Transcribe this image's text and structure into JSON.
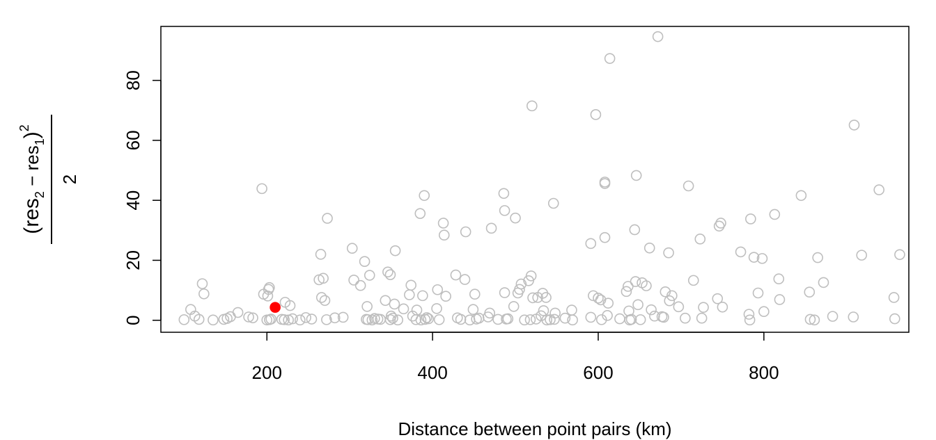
{
  "chart_data": {
    "type": "scatter",
    "xlabel": "Distance between point pairs (km)",
    "ylabel_expr": {
      "numerator_parts": [
        "(res",
        "2",
        " − res",
        "1",
        ")",
        "2"
      ],
      "denominator": "2"
    },
    "xlim": [
      72,
      975
    ],
    "ylim": [
      -4,
      98
    ],
    "x_ticks": [
      200,
      400,
      600,
      800
    ],
    "y_ticks": [
      0,
      20,
      40,
      60,
      80
    ],
    "grid": false,
    "colors": {
      "points": "#bebebe",
      "highlight": "#ff0000"
    },
    "series": [
      {
        "points": [
          [
            100,
            0.2
          ],
          [
            108,
            3.6
          ],
          [
            113,
            1.4
          ],
          [
            118,
            0.3
          ],
          [
            122,
            12.2
          ],
          [
            124,
            8.8
          ],
          [
            135,
            0.1
          ],
          [
            148,
            0.3
          ],
          [
            152,
            0.6
          ],
          [
            156,
            1.2
          ],
          [
            165,
            2.6
          ],
          [
            178,
            1.1
          ],
          [
            183,
            0.8
          ],
          [
            194,
            43.9
          ],
          [
            196,
            8.7
          ],
          [
            201,
            8.1
          ],
          [
            202,
            10.3
          ],
          [
            203,
            10.9
          ],
          [
            200,
            0.1
          ],
          [
            203,
            0.2
          ],
          [
            205,
            0.4
          ],
          [
            218,
            0.3
          ],
          [
            221,
            0.2
          ],
          [
            222,
            6.0
          ],
          [
            226,
            0.1
          ],
          [
            228,
            4.9
          ],
          [
            231,
            0.5
          ],
          [
            240,
            0.1
          ],
          [
            247,
            0.9
          ],
          [
            254,
            0.4
          ],
          [
            263,
            13.5
          ],
          [
            265,
            22.0
          ],
          [
            266,
            7.6
          ],
          [
            268,
            14.0
          ],
          [
            270,
            6.6
          ],
          [
            273,
            34.0
          ],
          [
            272,
            0.2
          ],
          [
            282,
            0.8
          ],
          [
            292,
            1.0
          ],
          [
            303,
            24.0
          ],
          [
            305,
            13.4
          ],
          [
            313,
            11.6
          ],
          [
            318,
            19.6
          ],
          [
            320,
            0.3
          ],
          [
            322,
            0.2
          ],
          [
            321,
            4.6
          ],
          [
            324,
            15.0
          ],
          [
            327,
            0.1
          ],
          [
            330,
            0.6
          ],
          [
            334,
            0.4
          ],
          [
            337,
            0.3
          ],
          [
            343,
            6.6
          ],
          [
            346,
            16.1
          ],
          [
            349,
            15.2
          ],
          [
            349,
            0.2
          ],
          [
            350,
            1.4
          ],
          [
            352,
            0.7
          ],
          [
            354,
            5.4
          ],
          [
            355,
            23.2
          ],
          [
            358,
            0.1
          ],
          [
            365,
            3.8
          ],
          [
            372,
            8.5
          ],
          [
            374,
            11.7
          ],
          [
            376,
            1.4
          ],
          [
            380,
            0.2
          ],
          [
            381,
            3.4
          ],
          [
            385,
            35.6
          ],
          [
            386,
            0.1
          ],
          [
            388,
            8.2
          ],
          [
            390,
            41.6
          ],
          [
            391,
            0.3
          ],
          [
            393,
            0.9
          ],
          [
            395,
            0.5
          ],
          [
            405,
            3.9
          ],
          [
            406,
            10.2
          ],
          [
            408,
            0.2
          ],
          [
            413,
            32.4
          ],
          [
            414,
            28.4
          ],
          [
            416,
            8.0
          ],
          [
            428,
            15.1
          ],
          [
            430,
            0.8
          ],
          [
            434,
            0.3
          ],
          [
            439,
            13.6
          ],
          [
            440,
            29.5
          ],
          [
            445,
            0.1
          ],
          [
            449,
            3.6
          ],
          [
            451,
            8.7
          ],
          [
            453,
            0.4
          ],
          [
            456,
            0.7
          ],
          [
            467,
            1.1
          ],
          [
            469,
            2.4
          ],
          [
            471,
            30.7
          ],
          [
            479,
            0.3
          ],
          [
            486,
            42.3
          ],
          [
            487,
            36.6
          ],
          [
            487,
            9.2
          ],
          [
            489,
            0.4
          ],
          [
            491,
            0.5
          ],
          [
            498,
            4.6
          ],
          [
            500,
            34.1
          ],
          [
            503,
            9.1
          ],
          [
            505,
            10.3
          ],
          [
            507,
            12.1
          ],
          [
            511,
            0.1
          ],
          [
            516,
            13.2
          ],
          [
            518,
            0.2
          ],
          [
            519,
            14.8
          ],
          [
            520,
            71.5
          ],
          [
            521,
            7.5
          ],
          [
            525,
            0.4
          ],
          [
            527,
            7.6
          ],
          [
            531,
            1.5
          ],
          [
            533,
            9.0
          ],
          [
            534,
            3.2
          ],
          [
            537,
            7.6
          ],
          [
            538,
            0.1
          ],
          [
            542,
            0.2
          ],
          [
            546,
            39.0
          ],
          [
            547,
            0.3
          ],
          [
            548,
            2.4
          ],
          [
            560,
            0.7
          ],
          [
            568,
            3.4
          ],
          [
            569,
            0.1
          ],
          [
            591,
            25.6
          ],
          [
            591,
            1.0
          ],
          [
            594,
            8.2
          ],
          [
            597,
            68.6
          ],
          [
            600,
            7.4
          ],
          [
            603,
            6.8
          ],
          [
            604,
            0.2
          ],
          [
            608,
            27.6
          ],
          [
            608,
            46.1
          ],
          [
            608,
            45.6
          ],
          [
            611,
            1.6
          ],
          [
            612,
            5.7
          ],
          [
            614,
            87.3
          ],
          [
            626,
            0.5
          ],
          [
            634,
            9.6
          ],
          [
            636,
            11.3
          ],
          [
            637,
            3.1
          ],
          [
            638,
            0.1
          ],
          [
            640,
            0.3
          ],
          [
            644,
            30.2
          ],
          [
            645,
            12.9
          ],
          [
            646,
            48.3
          ],
          [
            648,
            5.2
          ],
          [
            651,
            0.2
          ],
          [
            653,
            12.5
          ],
          [
            658,
            11.5
          ],
          [
            662,
            24.1
          ],
          [
            664,
            3.5
          ],
          [
            668,
            1.4
          ],
          [
            672,
            94.6
          ],
          [
            677,
            1.2
          ],
          [
            679,
            1.0
          ],
          [
            681,
            9.5
          ],
          [
            685,
            22.5
          ],
          [
            686,
            6.5
          ],
          [
            689,
            8.2
          ],
          [
            697,
            4.5
          ],
          [
            705,
            0.7
          ],
          [
            709,
            44.8
          ],
          [
            715,
            13.3
          ],
          [
            723,
            27.1
          ],
          [
            725,
            0.7
          ],
          [
            727,
            4.3
          ],
          [
            744,
            7.2
          ],
          [
            746,
            31.4
          ],
          [
            748,
            32.4
          ],
          [
            750,
            4.4
          ],
          [
            772,
            22.8
          ],
          [
            782,
            2.0
          ],
          [
            783,
            0.1
          ],
          [
            784,
            33.8
          ],
          [
            788,
            21.0
          ],
          [
            793,
            9.1
          ],
          [
            798,
            20.6
          ],
          [
            800,
            2.9
          ],
          [
            813,
            35.3
          ],
          [
            818,
            13.8
          ],
          [
            819,
            6.9
          ],
          [
            845,
            41.6
          ],
          [
            855,
            9.4
          ],
          [
            856,
            0.3
          ],
          [
            861,
            0.1
          ],
          [
            865,
            20.9
          ],
          [
            872,
            12.6
          ],
          [
            883,
            1.3
          ],
          [
            908,
            1.1
          ],
          [
            909,
            65.1
          ],
          [
            918,
            21.7
          ],
          [
            939,
            43.5
          ],
          [
            957,
            7.6
          ],
          [
            958,
            0.5
          ],
          [
            964,
            21.9
          ]
        ]
      },
      {
        "points": [
          [
            210,
            4.3
          ]
        ]
      }
    ]
  }
}
